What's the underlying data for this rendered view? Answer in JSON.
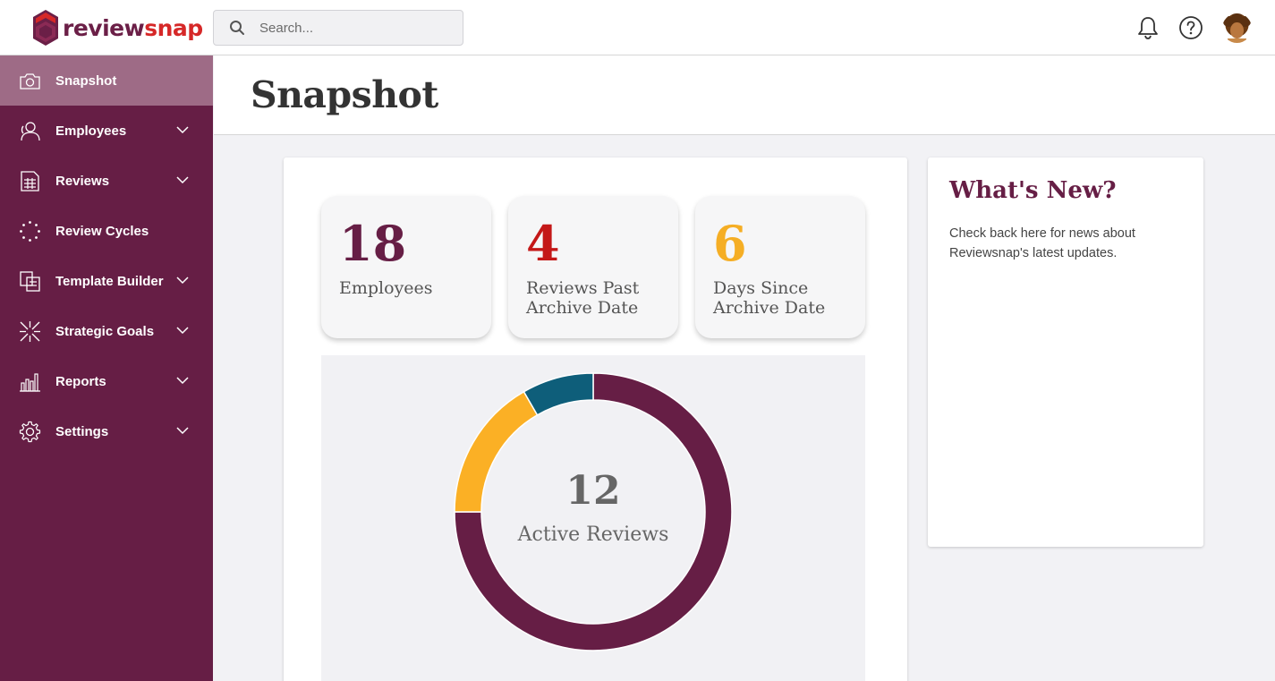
{
  "app": {
    "logo_text_a": "review",
    "logo_text_b": "snap"
  },
  "search": {
    "placeholder": "Search..."
  },
  "header_icons": [
    "bell-icon",
    "help-icon",
    "user-avatar"
  ],
  "sidebar": {
    "items": [
      {
        "label": "Snapshot",
        "icon": "camera-icon",
        "active": true,
        "has_chevron": false
      },
      {
        "label": "Employees",
        "icon": "people-icon",
        "active": false,
        "has_chevron": true
      },
      {
        "label": "Reviews",
        "icon": "document-grid-icon",
        "active": false,
        "has_chevron": true
      },
      {
        "label": "Review Cycles",
        "icon": "dotted-circle-icon",
        "active": false,
        "has_chevron": false
      },
      {
        "label": "Template Builder",
        "icon": "template-icon",
        "active": false,
        "has_chevron": true
      },
      {
        "label": "Strategic Goals",
        "icon": "arrows-converge-icon",
        "active": false,
        "has_chevron": true
      },
      {
        "label": "Reports",
        "icon": "bar-chart-icon",
        "active": false,
        "has_chevron": true
      },
      {
        "label": "Settings",
        "icon": "gear-icon",
        "active": false,
        "has_chevron": true
      }
    ]
  },
  "page": {
    "title": "Snapshot"
  },
  "stats": [
    {
      "value": "18",
      "label": "Employees",
      "color": "#661e45"
    },
    {
      "value": "4",
      "label": "Reviews Past Archive Date",
      "color": "#c41818"
    },
    {
      "value": "6",
      "label": "Days Since Archive Date",
      "color": "#f5ae25"
    }
  ],
  "chart_data": {
    "type": "donut",
    "center_value": "12",
    "center_label": "Active Reviews",
    "segments": [
      {
        "value": 9,
        "color": "#661e45"
      },
      {
        "value": 2,
        "color": "#fbb025"
      },
      {
        "value": 1,
        "color": "#0e5e7a"
      }
    ]
  },
  "whats_new": {
    "title": "What's New?",
    "body": "Check back here for news about Reviewsnap's latest updates."
  },
  "colors": {
    "sidebar_bg": "#661e45",
    "sidebar_active": "#9e6b86",
    "brand_red": "#d62828"
  }
}
